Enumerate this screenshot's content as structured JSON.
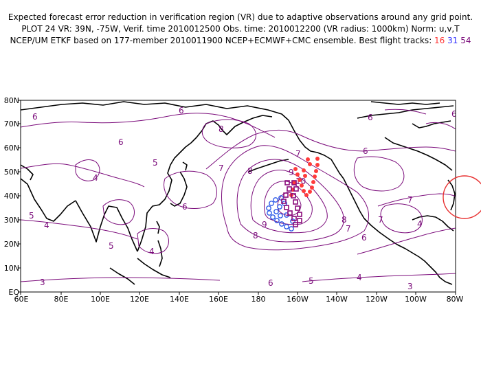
{
  "header": {
    "line1": "Expected forecast error reduction in verification region (VR) due to adaptive observations around any grid point.",
    "line2": "PLOT 24 VR: 39N, -75W, Verif. time 2010012500 Obs. time: 2010012200 (VR radius: 1000km) Norm: u,v,T",
    "line3_prefix": "NCEP/UM ETKF based on 177-member 2010011900 NCEP+ECMWF+CMC ensemble. Best flight tracks: ",
    "track_16": "16",
    "track_31": "31",
    "track_54": "54"
  },
  "map": {
    "lat_labels": [
      "EQ",
      "10N",
      "20N",
      "30N",
      "40N",
      "50N",
      "60N",
      "70N",
      "80N"
    ],
    "lon_labels": [
      "60E",
      "80E",
      "100E",
      "120E",
      "140E",
      "160E",
      "180",
      "160W",
      "140W",
      "120W",
      "100W",
      "80W"
    ],
    "contour_labels": [
      {
        "text": "6",
        "id": "c1"
      },
      {
        "text": "8",
        "id": "c2"
      },
      {
        "text": "6",
        "id": "c3"
      },
      {
        "text": "5",
        "id": "c4"
      },
      {
        "text": "4",
        "id": "c5"
      },
      {
        "text": "5",
        "id": "c6"
      },
      {
        "text": "4",
        "id": "c7"
      },
      {
        "text": "5",
        "id": "c8"
      },
      {
        "text": "6",
        "id": "c9"
      },
      {
        "text": "7",
        "id": "c10"
      },
      {
        "text": "8",
        "id": "c11"
      },
      {
        "text": "9",
        "id": "c12"
      },
      {
        "text": "10",
        "id": "c13"
      },
      {
        "text": "9",
        "id": "c14"
      },
      {
        "text": "8",
        "id": "c15"
      },
      {
        "text": "8",
        "id": "c16"
      },
      {
        "text": "7",
        "id": "c17"
      },
      {
        "text": "6",
        "id": "c18"
      },
      {
        "text": "7",
        "id": "c19"
      },
      {
        "text": "6",
        "id": "c20"
      },
      {
        "text": "6",
        "id": "c21"
      },
      {
        "text": "7",
        "id": "c22"
      },
      {
        "text": "4",
        "id": "c23"
      },
      {
        "text": "4",
        "id": "c24"
      },
      {
        "text": "5",
        "id": "c25"
      },
      {
        "text": "6",
        "id": "c26"
      },
      {
        "text": "3",
        "id": "c27"
      },
      {
        "text": "4",
        "id": "c28"
      },
      {
        "text": "3",
        "id": "c29"
      },
      {
        "text": "6",
        "id": "c30"
      },
      {
        "text": "7",
        "id": "c31"
      },
      {
        "text": "6",
        "id": "c32"
      }
    ],
    "colors": {
      "contour": "#7a0a7a",
      "coast": "#000000",
      "track16": "#ff3b3b",
      "track31": "#2d5be8",
      "track54": "#8a0a7a",
      "vr_circle": "#e83030"
    }
  }
}
